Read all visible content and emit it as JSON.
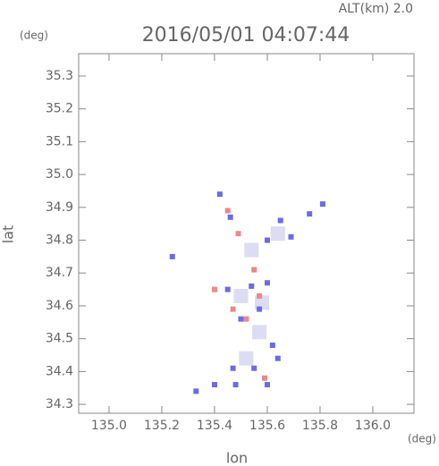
{
  "chart_data": {
    "type": "scatter",
    "title": "2016/05/01 04:07:44",
    "subtitle": "ALT(km) 2.0",
    "y_unit": "(deg)",
    "x_unit": "(deg)",
    "xlabel": "lon",
    "ylabel": "lat",
    "xlim": [
      134.885,
      136.156
    ],
    "ylim": [
      34.273,
      35.368
    ],
    "xticks": [
      {
        "value": 135.0,
        "label": "135.0"
      },
      135.2,
      135.4,
      135.6,
      135.8,
      {
        "value": 136.0,
        "label": "136.0"
      }
    ],
    "yticks": [
      34.3,
      34.4,
      34.5,
      34.6,
      34.7,
      34.8,
      34.9,
      {
        "value": 35.0,
        "label": "35.0"
      },
      35.1,
      35.2,
      35.3
    ],
    "series": [
      {
        "color": "#dcdcf2",
        "x": [
          135.5,
          135.57,
          135.52,
          135.58,
          135.54,
          135.64
        ],
        "values": [
          34.63,
          34.52,
          34.44,
          34.61,
          34.77,
          34.82
        ]
      },
      {
        "color": "#6b6be6",
        "x": [
          135.42,
          135.46,
          135.6,
          135.65,
          135.69,
          135.76,
          135.81,
          135.24,
          135.54,
          135.6,
          135.57,
          135.62,
          135.64,
          135.47,
          135.55,
          135.33,
          135.4,
          135.48,
          135.6,
          135.45,
          135.5
        ],
        "values": [
          34.94,
          34.87,
          34.8,
          34.86,
          34.81,
          34.88,
          34.91,
          34.75,
          34.66,
          34.67,
          34.59,
          34.48,
          34.44,
          34.41,
          34.41,
          34.34,
          34.36,
          34.36,
          34.36,
          34.65,
          34.56
        ]
      },
      {
        "color": "#ec8888",
        "x": [
          135.4,
          135.52,
          135.55,
          135.49,
          135.57,
          135.47,
          135.59,
          135.45
        ],
        "values": [
          34.65,
          34.56,
          34.71,
          34.82,
          34.63,
          34.59,
          34.38,
          34.89
        ]
      }
    ]
  }
}
